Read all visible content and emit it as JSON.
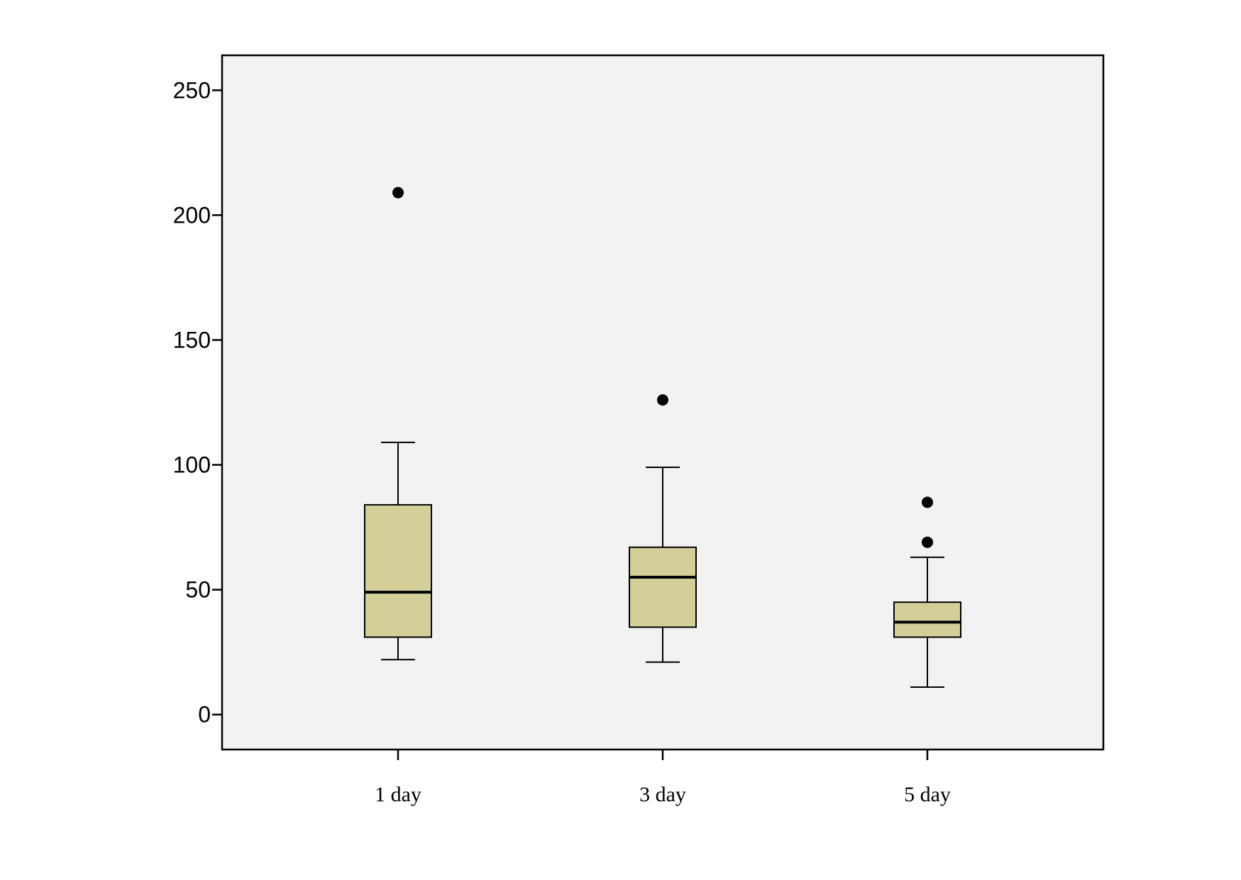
{
  "chart_data": {
    "type": "box",
    "title": "",
    "xlabel": "",
    "ylabel": "",
    "ylim": [
      -14,
      264
    ],
    "yticks": [
      0,
      50,
      100,
      150,
      200,
      250
    ],
    "grid": false,
    "legend": "none",
    "colors": {
      "plot_background": "#f2f2f2",
      "box_fill": "#d4cf99",
      "stroke": "#000000"
    },
    "categories": [
      "1 day",
      "3 day",
      "5 day"
    ],
    "boxes": [
      {
        "category": "1 day",
        "whisker_low": 22,
        "q1": 31,
        "median": 49,
        "q3": 84,
        "whisker_high": 109,
        "outliers": [
          209
        ]
      },
      {
        "category": "3 day",
        "whisker_low": 21,
        "q1": 35,
        "median": 55,
        "q3": 67,
        "whisker_high": 99,
        "outliers": [
          126
        ]
      },
      {
        "category": "5 day",
        "whisker_low": 11,
        "q1": 31,
        "median": 37,
        "q3": 45,
        "whisker_high": 63,
        "outliers": [
          69,
          85
        ]
      }
    ]
  }
}
